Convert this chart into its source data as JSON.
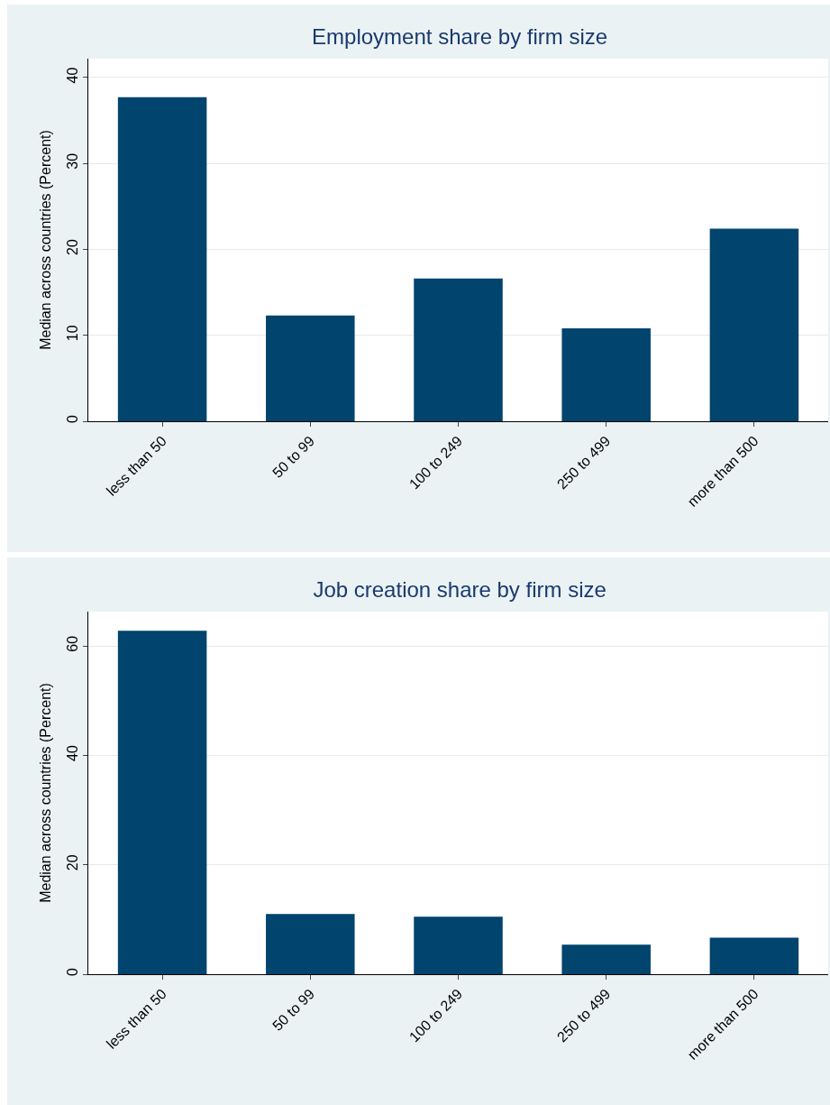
{
  "chart_data": [
    {
      "type": "bar",
      "title": "Employment share by firm size",
      "ylabel": "Median across countries (Percent)",
      "categories": [
        "less than 50",
        "50 to 99",
        "100 to 249",
        "250 to 499",
        "more than 500"
      ],
      "values": [
        37.7,
        12.3,
        16.6,
        10.8,
        22.4
      ],
      "color": "#01446e",
      "ylim": [
        0,
        42.2
      ],
      "yticks": [
        0,
        10,
        20,
        30,
        40
      ],
      "grid": "y"
    },
    {
      "type": "bar",
      "title": "Job creation share by firm size",
      "ylabel": "Median across countries (Percent)",
      "categories": [
        "less than 50",
        "50 to 99",
        "100 to 249",
        "250 to 499",
        "more than 500"
      ],
      "values": [
        62.8,
        11.0,
        10.5,
        5.4,
        6.7
      ],
      "color": "#01446e",
      "ylim": [
        0,
        66.3
      ],
      "yticks": [
        0,
        20,
        40,
        60
      ],
      "grid": "y"
    }
  ]
}
